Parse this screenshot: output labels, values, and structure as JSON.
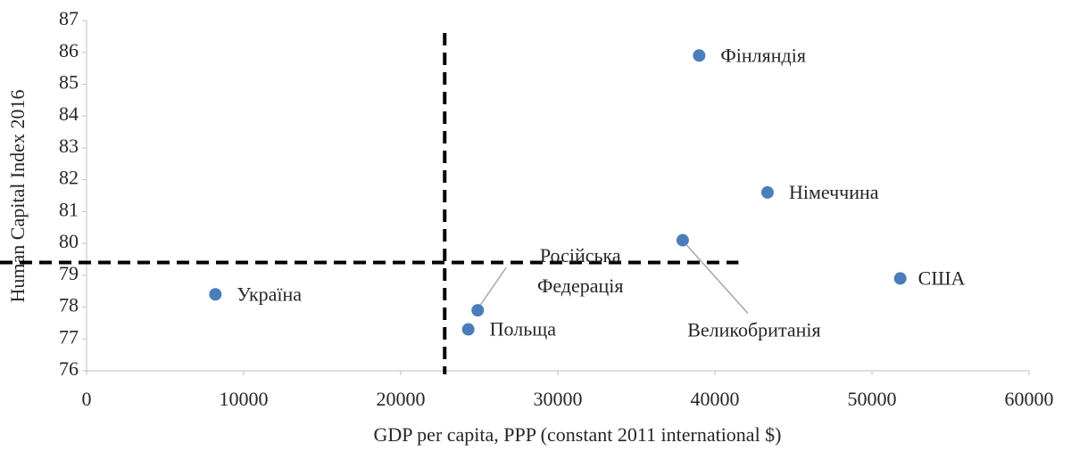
{
  "chart_data": {
    "type": "scatter",
    "x_label": "GDP per capita, PPP (constant 2011 international $)",
    "y_label": "Human Capital Index 2016",
    "labels": [
      "Україна",
      "Польща",
      "Російська Федерація",
      "Великобританія",
      "Фінляндія",
      "Німеччина",
      "США"
    ],
    "x": [
      8200,
      24300,
      24900,
      37950,
      39000,
      43350,
      51800
    ],
    "values": [
      78.4,
      77.3,
      77.9,
      80.1,
      85.9,
      81.6,
      78.9
    ],
    "color": "#4a7ebb",
    "xlim": [
      0,
      60000
    ],
    "xticks": [
      0,
      10000,
      20000,
      30000,
      40000,
      50000,
      60000
    ],
    "ylim": [
      76,
      87
    ],
    "yticks": [
      76,
      77,
      78,
      79,
      80,
      81,
      82,
      83,
      84,
      85,
      86,
      87
    ],
    "reference_lines": {
      "x": 22800,
      "y": 79.4
    }
  }
}
